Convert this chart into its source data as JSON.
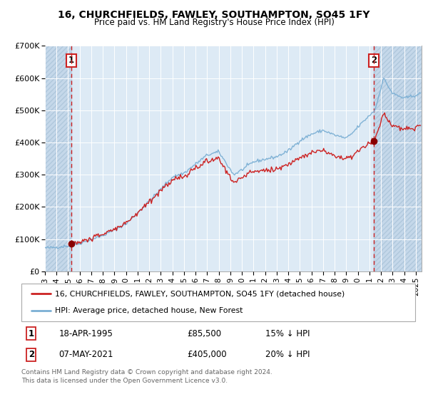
{
  "title": "16, CHURCHFIELDS, FAWLEY, SOUTHAMPTON, SO45 1FY",
  "subtitle": "Price paid vs. HM Land Registry's House Price Index (HPI)",
  "sale1_date": "18-APR-1995",
  "sale1_price": 85500,
  "sale1_label": "15% ↓ HPI",
  "sale2_date": "07-MAY-2021",
  "sale2_price": 405000,
  "sale2_label": "20% ↓ HPI",
  "legend1": "16, CHURCHFIELDS, FAWLEY, SOUTHAMPTON, SO45 1FY (detached house)",
  "legend2": "HPI: Average price, detached house, New Forest",
  "footer": "Contains HM Land Registry data © Crown copyright and database right 2024.\nThis data is licensed under the Open Government Licence v3.0.",
  "hpi_color": "#7bafd4",
  "price_color": "#cc2222",
  "marker_color": "#880000",
  "vline_color": "#cc2222",
  "background_chart": "#ddeaf5",
  "background_hatch_color": "#c5d8ea",
  "ylim": [
    0,
    700000
  ],
  "yticks": [
    0,
    100000,
    200000,
    300000,
    400000,
    500000,
    600000,
    700000
  ],
  "sale1_x": 1995.29,
  "sale2_x": 2021.37,
  "xmin": 1993.0,
  "xmax": 2025.5
}
